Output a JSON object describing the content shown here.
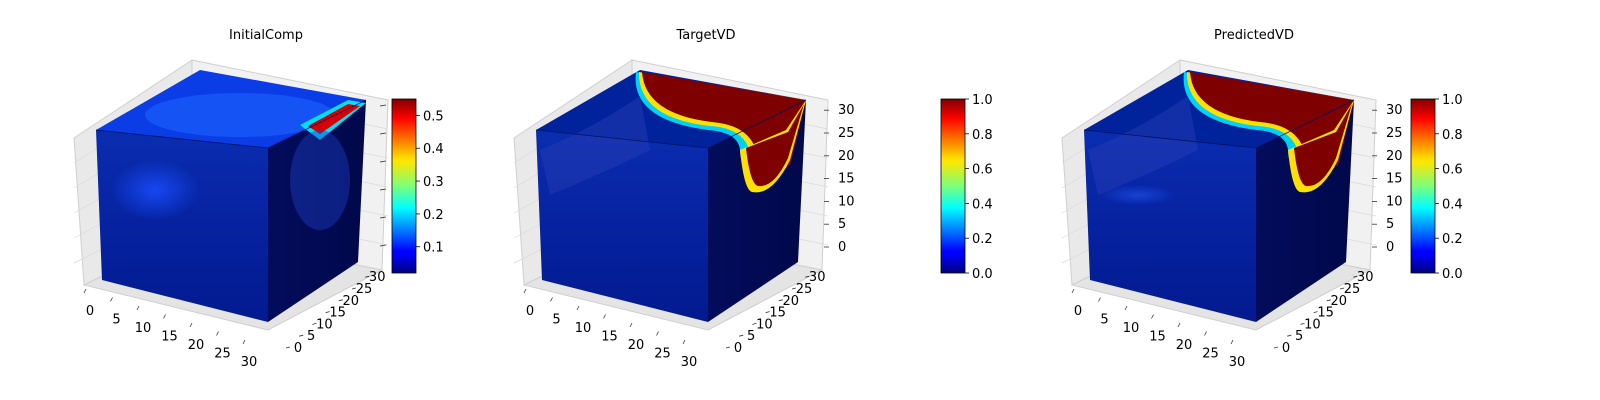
{
  "figure": {
    "background": "#ffffff",
    "colormap": "jet"
  },
  "chart_data": [
    {
      "type": "heatmap",
      "subtype": "3d-voxel-cube",
      "title": "InitialComp",
      "x_ticks": [
        "0",
        "5",
        "10",
        "15",
        "20",
        "25",
        "30"
      ],
      "y_ticks": [
        "0",
        "5",
        "10",
        "15",
        "20",
        "25",
        "30"
      ],
      "z_ticks": [],
      "colorbar": {
        "ticks": [
          "0.1",
          "0.2",
          "0.3",
          "0.4",
          "0.5"
        ],
        "vmin": 0.02,
        "vmax": 0.55
      },
      "description_hidden": "mostly low values (~0.05-0.1) with a hot band (~0.5) at the back-right top corner",
      "top_max_value": 0.55
    },
    {
      "type": "heatmap",
      "subtype": "3d-voxel-cube",
      "title": "TargetVD",
      "x_ticks": [
        "0",
        "5",
        "10",
        "15",
        "20",
        "25",
        "30"
      ],
      "y_ticks": [
        "0",
        "5",
        "10",
        "15",
        "20",
        "25",
        "30"
      ],
      "z_ticks": [
        "0",
        "5",
        "10",
        "15",
        "20",
        "25",
        "30"
      ],
      "colorbar": {
        "ticks": [
          "0.0",
          "0.2",
          "0.4",
          "0.6",
          "0.8",
          "1.0"
        ],
        "vmin": 0.0,
        "vmax": 1.0
      },
      "top_max_value": 1.0
    },
    {
      "type": "heatmap",
      "subtype": "3d-voxel-cube",
      "title": "PredictedVD",
      "x_ticks": [
        "0",
        "5",
        "10",
        "15",
        "20",
        "25",
        "30"
      ],
      "y_ticks": [
        "0",
        "5",
        "10",
        "15",
        "20",
        "25",
        "30"
      ],
      "z_ticks": [
        "0",
        "5",
        "10",
        "15",
        "20",
        "25",
        "30"
      ],
      "colorbar": {
        "ticks": [
          "0.0",
          "0.2",
          "0.4",
          "0.6",
          "0.8",
          "1.0"
        ],
        "vmin": 0.0,
        "vmax": 1.0
      },
      "top_max_value": 1.0
    }
  ]
}
